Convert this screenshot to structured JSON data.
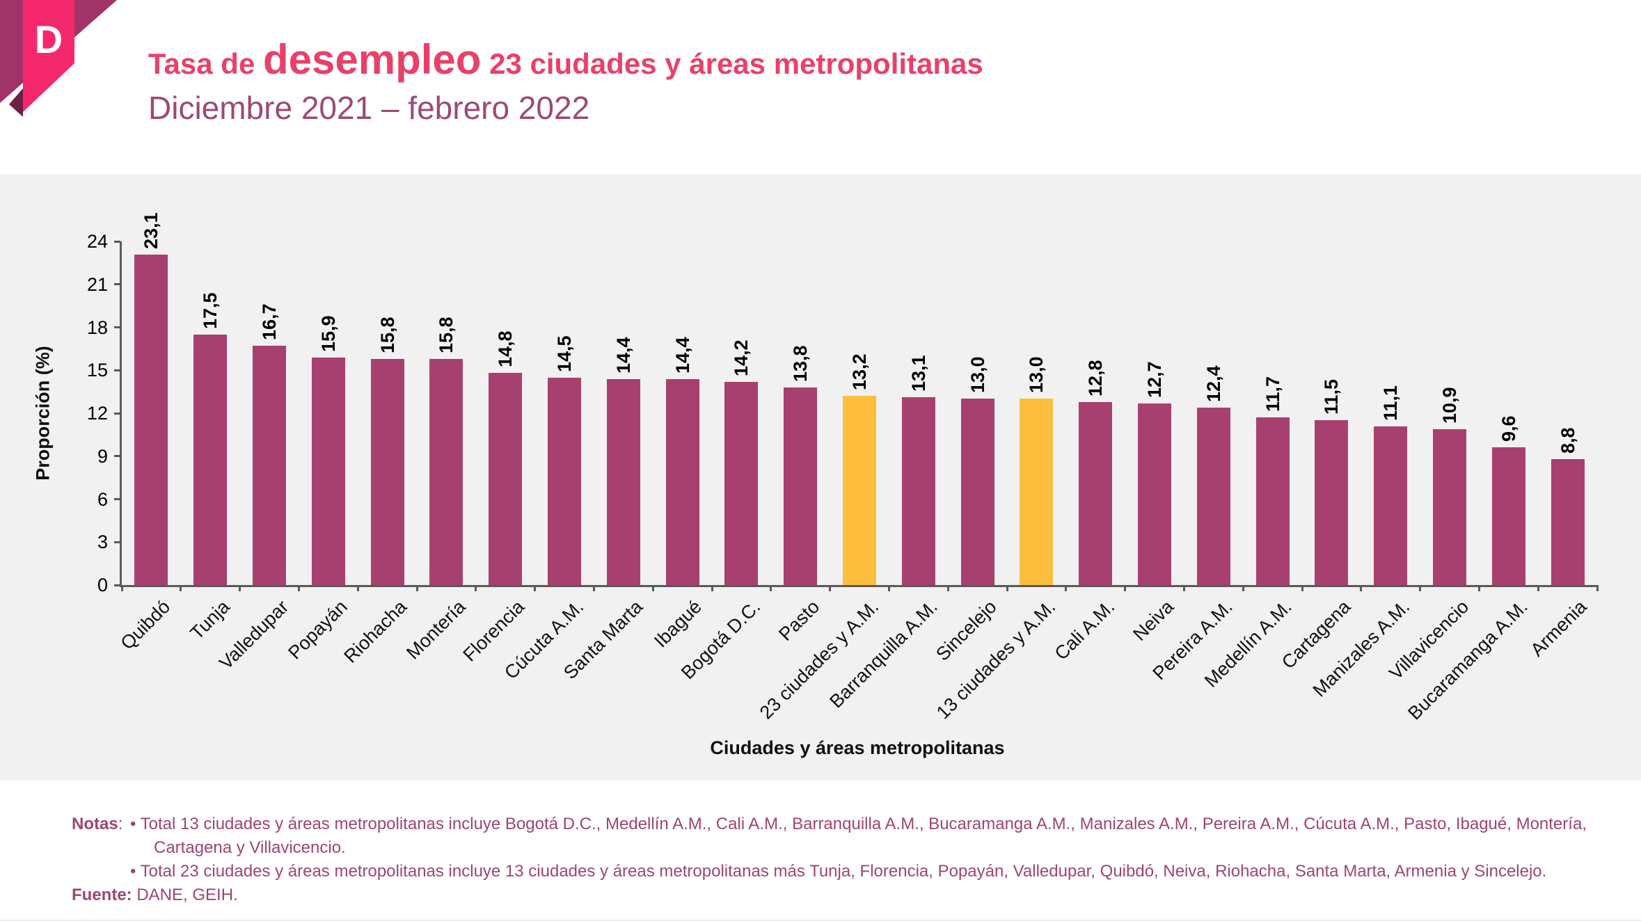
{
  "header": {
    "logo_letter": "D",
    "title_prefix": "Tasa de ",
    "title_emphasis": "desempleo",
    "title_suffix": " 23 ciudades y áreas metropolitanas",
    "subtitle": "Diciembre 2021 – febrero 2022"
  },
  "chart_data": {
    "type": "bar",
    "xlabel": "Ciudades y áreas metropolitanas",
    "ylabel": "Proporción (%)",
    "ylim": [
      0,
      24
    ],
    "ytick_step": 3,
    "grid": false,
    "legend": "none",
    "bar_color": "#A8406F",
    "highlight_color": "#FCBE3C",
    "highlight_indices": [
      12,
      15
    ],
    "categories": [
      "Quibdó",
      "Tunja",
      "Valledupar",
      "Popayán",
      "Riohacha",
      "Montería",
      "Florencia",
      "Cúcuta A.M.",
      "Santa Marta",
      "Ibagué",
      "Bogotá D.C.",
      "Pasto",
      "23 ciudades y A.M.",
      "Barranquilla A.M.",
      "Sincelejo",
      "13 ciudades y A.M.",
      "Cali A.M.",
      "Neiva",
      "Pereira A.M.",
      "Medellín A.M.",
      "Cartagena",
      "Manizales A.M.",
      "Villavicencio",
      "Bucaramanga A.M.",
      "Armenia"
    ],
    "values": [
      23.1,
      17.5,
      16.7,
      15.9,
      15.8,
      15.8,
      14.8,
      14.5,
      14.4,
      14.4,
      14.2,
      13.8,
      13.2,
      13.1,
      13.0,
      13.0,
      12.8,
      12.7,
      12.4,
      11.7,
      11.5,
      11.1,
      10.9,
      9.6,
      8.8
    ],
    "value_labels": [
      "23,1",
      "17,5",
      "16,7",
      "15,9",
      "15,8",
      "15,8",
      "14,8",
      "14,5",
      "14,4",
      "14,4",
      "14,2",
      "13,8",
      "13,2",
      "13,1",
      "13,0",
      "13,0",
      "12,8",
      "12,7",
      "12,4",
      "11,7",
      "11,5",
      "11,1",
      "10,9",
      "9,6",
      "8,8"
    ],
    "ytick_labels": [
      "0",
      "3",
      "6",
      "9",
      "12",
      "15",
      "18",
      "21",
      "24"
    ]
  },
  "notes": {
    "label": "Notas",
    "colon": ":",
    "bullets": [
      "• Total 13 ciudades y áreas metropolitanas incluye Bogotá D.C., Medellín A.M., Cali A.M., Barranquilla A.M., Bucaramanga A.M., Manizales A.M., Pereira A.M., Cúcuta A.M., Pasto, Ibagué, Montería, Cartagena y Villavicencio.",
      "• Total 23 ciudades y áreas metropolitanas incluye 13 ciudades y áreas metropolitanas más Tunja, Florencia, Popayán, Valledupar, Quibdó, Neiva, Riohacha, Santa Marta, Armenia y Sincelejo."
    ],
    "source_label": "Fuente:",
    "source_text": " DANE, GEIH."
  },
  "colors": {
    "title_pink": "#E94069",
    "subtitle_plum": "#9B4A74",
    "notes_plum": "#9D4571",
    "panel_gray": "#F2F1F1",
    "axis_gray": "#595959",
    "logo_ribbon_pink": "#F5276D",
    "logo_triangle_purple": "#A03368",
    "logo_shadow": "#6E1F44"
  }
}
